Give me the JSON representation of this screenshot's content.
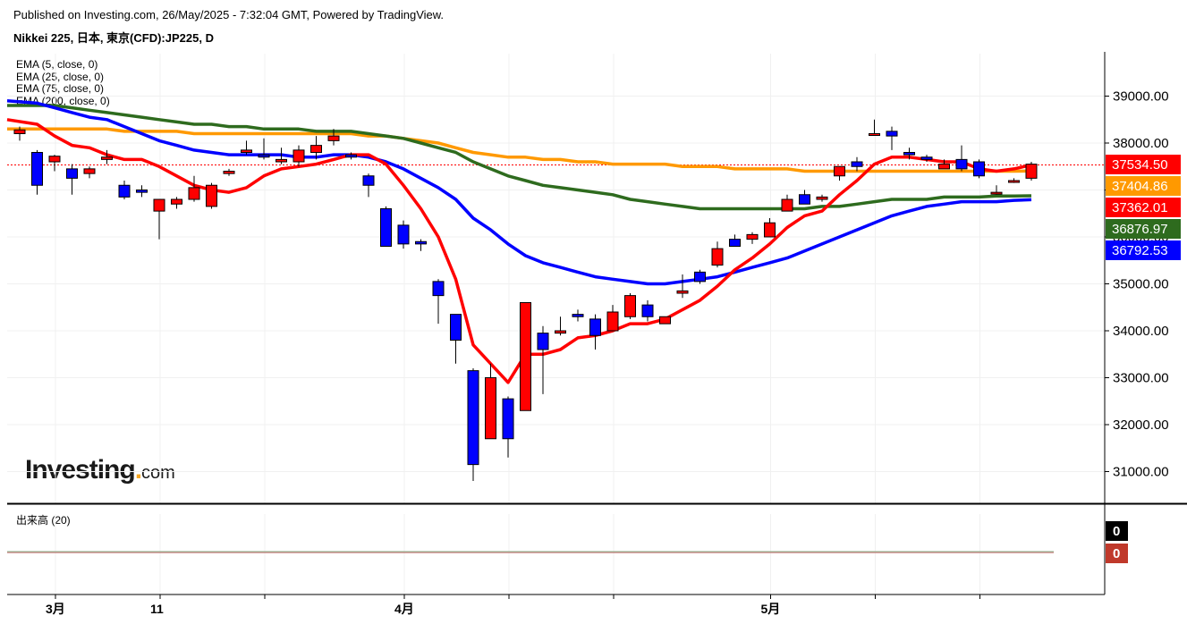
{
  "header": {
    "published": "Published on Investing.com, 26/May/2025 - 7:32:04 GMT, Powered by TradingView.",
    "symbol": "Nikkei 225, 日本, 東京(CFD):JP225, D"
  },
  "indicators": [
    {
      "label": "EMA (5, close, 0)",
      "color": "#ff0000",
      "value": "37362.01"
    },
    {
      "label": "EMA (25, close, 0)",
      "color": "#0000ff",
      "value": "36792.53"
    },
    {
      "label": "EMA (75, close, 0)",
      "color": "#2e6b1e",
      "value": "36876.97"
    },
    {
      "label": "EMA (200, close, 0)",
      "color": "#ff9900",
      "value": "37404.86"
    }
  ],
  "volume": {
    "title": "出来高 (20)",
    "labels": [
      "0",
      "0"
    ]
  },
  "logo": {
    "main": "Investing",
    "suffix": "com"
  },
  "chart_data": {
    "type": "candlestick",
    "price_axis": {
      "ticks": [
        "31000.00",
        "32000.00",
        "33000.00",
        "34000.00",
        "35000.00",
        "36000.00",
        "37000.00",
        "38000.00",
        "39000.00"
      ],
      "ylim": [
        30400,
        40000
      ]
    },
    "x_labels": [
      {
        "label": "3月",
        "index": 2
      },
      {
        "label": "11",
        "index": 8
      },
      {
        "label": "4月",
        "index": 22
      },
      {
        "label": "5月",
        "index": 43
      }
    ],
    "last_price": "37534.50",
    "last_price_color": "#ff0000",
    "candles": [
      [
        38200,
        38350,
        38050,
        38280
      ],
      [
        37800,
        37850,
        36900,
        37100
      ],
      [
        37600,
        37750,
        37400,
        37720
      ],
      [
        37450,
        37550,
        36900,
        37250
      ],
      [
        37350,
        37500,
        37250,
        37450
      ],
      [
        37650,
        37850,
        37550,
        37700
      ],
      [
        37100,
        37200,
        36800,
        36850
      ],
      [
        37000,
        37100,
        36850,
        36950
      ],
      [
        36550,
        36750,
        35950,
        36800
      ],
      [
        36700,
        36850,
        36600,
        36800
      ],
      [
        36800,
        37300,
        36750,
        37050
      ],
      [
        36650,
        37150,
        36600,
        37100
      ],
      [
        37350,
        37450,
        37300,
        37400
      ],
      [
        37800,
        38050,
        37750,
        37850
      ],
      [
        37750,
        38100,
        37650,
        37700
      ],
      [
        37600,
        37900,
        37550,
        37650
      ],
      [
        37600,
        37950,
        37500,
        37850
      ],
      [
        37800,
        38150,
        37650,
        37950
      ],
      [
        38050,
        38300,
        37950,
        38150
      ],
      [
        37750,
        37800,
        37650,
        37700
      ],
      [
        37300,
        37350,
        36850,
        37100
      ],
      [
        36600,
        36650,
        35800,
        35800
      ],
      [
        36250,
        36350,
        35750,
        35850
      ],
      [
        35900,
        35950,
        35700,
        35850
      ],
      [
        35050,
        35100,
        34150,
        34750
      ],
      [
        34350,
        34350,
        33300,
        33800
      ],
      [
        33150,
        33200,
        30800,
        31150
      ],
      [
        31700,
        33300,
        31700,
        33000
      ],
      [
        32550,
        32600,
        31300,
        31700
      ],
      [
        32300,
        34600,
        32300,
        34600
      ],
      [
        33950,
        34100,
        32650,
        33600
      ],
      [
        33950,
        34300,
        33900,
        34000
      ],
      [
        34350,
        34450,
        34200,
        34300
      ],
      [
        34250,
        34350,
        33600,
        33900
      ],
      [
        34000,
        34550,
        34000,
        34400
      ],
      [
        34300,
        34800,
        34250,
        34750
      ],
      [
        34550,
        34650,
        34200,
        34300
      ],
      [
        34150,
        34300,
        34150,
        34300
      ],
      [
        34800,
        35200,
        34700,
        34850
      ],
      [
        35250,
        35300,
        35000,
        35050
      ],
      [
        35400,
        35900,
        35350,
        35750
      ],
      [
        35950,
        36050,
        35800,
        35800
      ],
      [
        35950,
        36100,
        35850,
        36050
      ],
      [
        36000,
        36400,
        36000,
        36300
      ],
      [
        36550,
        36900,
        36550,
        36800
      ],
      [
        36900,
        37000,
        36700,
        36700
      ],
      [
        36800,
        36900,
        36750,
        36850
      ],
      [
        37300,
        37500,
        37200,
        37500
      ],
      [
        37600,
        37700,
        37400,
        37500
      ],
      [
        38200,
        38500,
        38200,
        38200
      ],
      [
        38250,
        38350,
        37850,
        38150
      ],
      [
        37800,
        37900,
        37650,
        37750
      ],
      [
        37700,
        37750,
        37600,
        37650
      ],
      [
        37450,
        37650,
        37450,
        37550
      ],
      [
        37650,
        37950,
        37400,
        37450
      ],
      [
        37600,
        37650,
        37250,
        37300
      ],
      [
        36950,
        37100,
        36900,
        36950
      ],
      [
        37200,
        37250,
        37150,
        37200
      ],
      [
        37250,
        37600,
        37200,
        37550
      ]
    ],
    "ema_values": {
      "ema5": [
        38500,
        38400,
        38150,
        37950,
        37900,
        37750,
        37650,
        37650,
        37500,
        37300,
        37100,
        37000,
        36950,
        37050,
        37300,
        37450,
        37500,
        37550,
        37650,
        37750,
        37750,
        37550,
        37100,
        36600,
        36000,
        35100,
        33700,
        33300,
        32900,
        33500,
        33500,
        33600,
        33850,
        33900,
        34000,
        34150,
        34150,
        34250,
        34450,
        34650,
        34950,
        35300,
        35550,
        35850,
        36200,
        36450,
        36550,
        36900,
        37200,
        37550,
        37700,
        37700,
        37650,
        37600,
        37600,
        37450,
        37400,
        37450,
        37534
      ],
      "ema25": [
        38900,
        38850,
        38750,
        38650,
        38550,
        38500,
        38350,
        38200,
        38050,
        37950,
        37850,
        37800,
        37750,
        37750,
        37750,
        37750,
        37700,
        37700,
        37750,
        37750,
        37700,
        37600,
        37450,
        37250,
        37050,
        36800,
        36400,
        36150,
        35850,
        35600,
        35450,
        35350,
        35250,
        35150,
        35100,
        35050,
        35000,
        35000,
        35050,
        35100,
        35150,
        35250,
        35350,
        35450,
        35550,
        35700,
        35850,
        36000,
        36150,
        36300,
        36450,
        36550,
        36650,
        36700,
        36750,
        36750,
        36750,
        36780,
        36792
      ],
      "ema75": [
        38800,
        38800,
        38800,
        38750,
        38700,
        38650,
        38600,
        38550,
        38500,
        38450,
        38400,
        38400,
        38350,
        38350,
        38300,
        38300,
        38300,
        38250,
        38250,
        38250,
        38200,
        38150,
        38100,
        38000,
        37900,
        37800,
        37600,
        37450,
        37300,
        37200,
        37100,
        37050,
        37000,
        36950,
        36900,
        36800,
        36750,
        36700,
        36650,
        36600,
        36600,
        36600,
        36600,
        36600,
        36600,
        36600,
        36650,
        36650,
        36700,
        36750,
        36800,
        36800,
        36800,
        36850,
        36850,
        36850,
        36870,
        36870,
        36877
      ],
      "ema200": [
        38300,
        38300,
        38300,
        38300,
        38300,
        38300,
        38250,
        38250,
        38250,
        38250,
        38200,
        38200,
        38200,
        38200,
        38200,
        38200,
        38200,
        38200,
        38200,
        38200,
        38150,
        38150,
        38100,
        38050,
        38000,
        37900,
        37800,
        37750,
        37700,
        37700,
        37650,
        37650,
        37600,
        37600,
        37550,
        37550,
        37550,
        37550,
        37500,
        37500,
        37500,
        37450,
        37450,
        37450,
        37450,
        37400,
        37400,
        37400,
        37400,
        37400,
        37400,
        37400,
        37400,
        37400,
        37400,
        37400,
        37400,
        37400,
        37404
      ]
    }
  }
}
